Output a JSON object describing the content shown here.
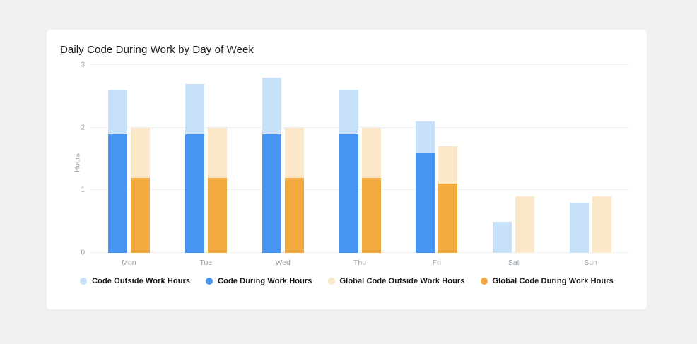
{
  "chart_data": {
    "type": "bar",
    "title": "Daily Code During Work by Day of Week",
    "xlabel": "",
    "ylabel": "Hours",
    "ylim": [
      0,
      3
    ],
    "yticks": [
      0,
      1,
      2,
      3
    ],
    "grid": true,
    "legend_position": "bottom",
    "categories": [
      "Mon",
      "Tue",
      "Wed",
      "Thu",
      "Fri",
      "Sat",
      "Sun"
    ],
    "stacks": [
      {
        "name": "code",
        "segments": [
          {
            "series": "Code During Work Hours",
            "color": "#4695F2",
            "values": [
              1.9,
              1.9,
              1.9,
              1.9,
              1.6,
              0,
              0
            ]
          },
          {
            "series": "Code Outside Work Hours",
            "color": "#C7E1FA",
            "values": [
              0.7,
              0.8,
              0.9,
              0.7,
              0.5,
              0.5,
              0.8
            ]
          }
        ],
        "stack_totals": [
          2.6,
          2.7,
          2.8,
          2.6,
          2.1,
          0.5,
          0.8
        ]
      },
      {
        "name": "global",
        "segments": [
          {
            "series": "Global Code During Work Hours",
            "color": "#F2A93D",
            "values": [
              1.2,
              1.2,
              1.2,
              1.2,
              1.1,
              0,
              0
            ]
          },
          {
            "series": "Global Code Outside Work Hours",
            "color": "#FAE8C9",
            "values": [
              0.8,
              0.8,
              0.8,
              0.8,
              0.6,
              0.9,
              0.9
            ]
          }
        ],
        "stack_totals": [
          2.0,
          2.0,
          2.0,
          2.0,
          1.7,
          0.9,
          0.9
        ]
      }
    ],
    "legend": [
      {
        "label": "Code Outside Work Hours",
        "color": "#C7E1FA"
      },
      {
        "label": "Code During Work Hours",
        "color": "#4695F2"
      },
      {
        "label": "Global Code Outside Work Hours",
        "color": "#FAE8C9"
      },
      {
        "label": "Global Code During Work Hours",
        "color": "#F2A93D"
      }
    ]
  },
  "colors": {
    "page_background": "#F1F1F1",
    "card_background": "#FFFFFF",
    "gridline": "#EFEFF0",
    "axis_text": "#9AA0A6",
    "title_text": "#1B1B1E",
    "legend_text": "#17181A"
  }
}
